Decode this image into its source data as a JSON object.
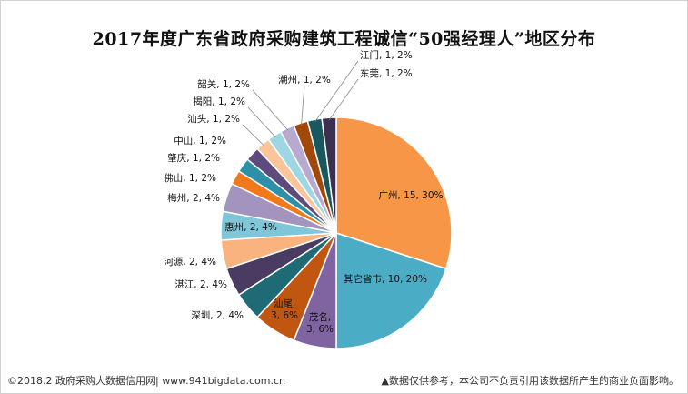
{
  "chart_data": {
    "type": "pie",
    "title": "2017年度广东省政府采购建筑工程诚信“50强经理人”地区分布",
    "slices": [
      {
        "name": "广州",
        "value": 15,
        "percent": "30%",
        "color": "#f79646"
      },
      {
        "name": "其它省市",
        "value": 10,
        "percent": "20%",
        "color": "#4bacc6"
      },
      {
        "name": "茂名",
        "value": 3,
        "percent": "6%",
        "color": "#8064a2"
      },
      {
        "name": "汕尾",
        "value": 3,
        "percent": "6%",
        "color": "#c0560f"
      },
      {
        "name": "深圳",
        "value": 2,
        "percent": "4%",
        "color": "#1f6b75"
      },
      {
        "name": "湛江",
        "value": 2,
        "percent": "4%",
        "color": "#4a3b63"
      },
      {
        "name": "河源",
        "value": 2,
        "percent": "4%",
        "color": "#fab27e"
      },
      {
        "name": "惠州",
        "value": 2,
        "percent": "4%",
        "color": "#7fc6d9"
      },
      {
        "name": "梅州",
        "value": 2,
        "percent": "4%",
        "color": "#a393bf"
      },
      {
        "name": "佛山",
        "value": 1,
        "percent": "2%",
        "color": "#f07a1b"
      },
      {
        "name": "肇庆",
        "value": 1,
        "percent": "2%",
        "color": "#2e8fa8"
      },
      {
        "name": "中山",
        "value": 1,
        "percent": "2%",
        "color": "#5e4a7c"
      },
      {
        "name": "汕头",
        "value": 1,
        "percent": "2%",
        "color": "#fbc59b"
      },
      {
        "name": "揭阳",
        "value": 1,
        "percent": "2%",
        "color": "#9fd6e4"
      },
      {
        "name": "韶关",
        "value": 1,
        "percent": "2%",
        "color": "#b8a9d1"
      },
      {
        "name": "潮州",
        "value": 1,
        "percent": "2%",
        "color": "#a3480b"
      },
      {
        "name": "江门",
        "value": 1,
        "percent": "2%",
        "color": "#1a5860"
      },
      {
        "name": "东莞",
        "value": 1,
        "percent": "2%",
        "color": "#3c3050"
      }
    ]
  },
  "footer": {
    "left": "©2018.2 政府采购大数据信用网| www.941bigdata.com.cn",
    "right": "▲数据仅供参考，本公司不负责引用该数据所产生的商业负面影响。"
  }
}
